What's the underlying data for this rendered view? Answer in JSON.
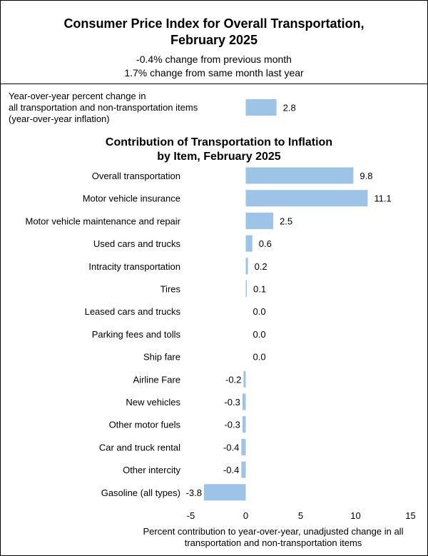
{
  "header": {
    "title_line1": "Consumer Price Index for Overall Transportation,",
    "title_line2": "February 2025",
    "subtitle_line1": "-0.4% change from previous month",
    "subtitle_line2": "1.7% change from same month last year"
  },
  "colors": {
    "bar": "#9dc3e6"
  },
  "chart_data": {
    "type": "bar",
    "orientation": "horizontal",
    "top_bar": {
      "label_lines": [
        "Year-over-year percent change in",
        "all transportation and non-transportation items",
        "(year-over-year inflation)"
      ],
      "value": 2.8,
      "value_label": "2.8"
    },
    "title_lines": [
      "Contribution of Transportation to Inflation",
      "by Item, February 2025"
    ],
    "categories": [
      "Overall transportation",
      "Motor vehicle insurance",
      "Motor vehicle maintenance and repair",
      "Used cars and trucks",
      "Intracity transportation",
      "Tires",
      "Leased cars and trucks",
      "Parking fees and tolls",
      "Ship fare",
      "Airline Fare",
      "New vehicles",
      "Other motor fuels",
      "Car and truck rental",
      "Other intercity",
      "Gasoline (all types)"
    ],
    "values": [
      9.8,
      11.1,
      2.5,
      0.6,
      0.2,
      0.1,
      0.0,
      0.0,
      0.0,
      -0.2,
      -0.3,
      -0.3,
      -0.4,
      -0.4,
      -3.8
    ],
    "value_labels": [
      "9.8",
      "11.1",
      "2.5",
      "0.6",
      "0.2",
      "0.1",
      "0.0",
      "0.0",
      "0.0",
      "-0.2",
      "-0.3",
      "-0.3",
      "-0.4",
      "-0.4",
      "-3.8"
    ],
    "xlim": [
      -5,
      15
    ],
    "x_ticks": [
      -5,
      0,
      5,
      10,
      15
    ],
    "x_tick_labels": [
      "-5",
      "0",
      "5",
      "10",
      "15"
    ],
    "xlabel_lines": [
      "Percent contribution to year-over-year, unadjusted change in all",
      "transportation and non-transportation items"
    ],
    "grid": false,
    "legend": "none"
  }
}
